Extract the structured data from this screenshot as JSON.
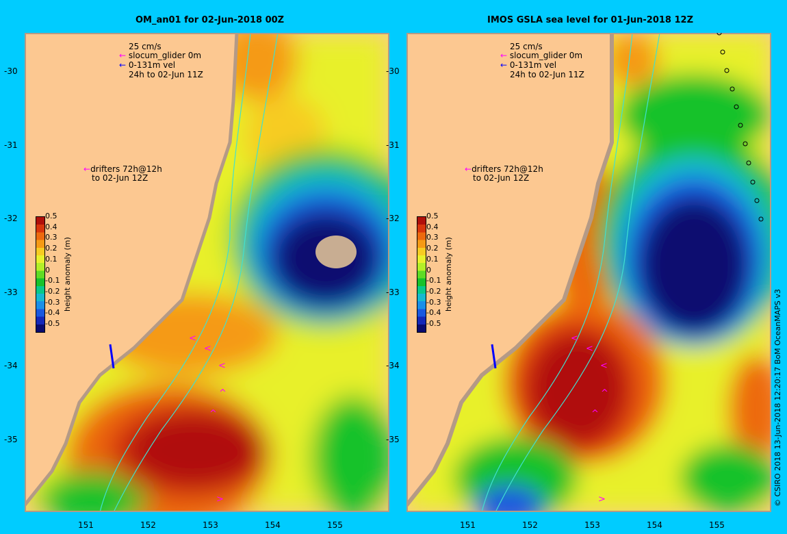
{
  "panels": [
    {
      "title": "OM_an01 for 02-Jun-2018 00Z",
      "legend": {
        "scale": "25 cm/s",
        "glider": "slocum_glider 0m",
        "vel": "0-131m vel",
        "window": "24h to 02-Jun 11Z",
        "drifters1": "drifters 72h@12h",
        "drifters2": "to 02-Jun 12Z"
      }
    },
    {
      "title": "IMOS GSLA sea level  for 01-Jun-2018 12Z",
      "legend": {
        "scale": "25 cm/s",
        "glider": "slocum_glider 0m",
        "vel": "0-131m vel",
        "window": "24h to 02-Jun 11Z",
        "drifters1": "drifters 72h@12h",
        "drifters2": "to 02-Jun 12Z"
      }
    }
  ],
  "colorbar": {
    "label": "height anomaly (m)",
    "ticks": [
      "0.5",
      "0.4",
      "0.3",
      "0.2",
      "0.1",
      "0",
      "-0.1",
      "-0.2",
      "-0.3",
      "-0.4",
      "-0.5"
    ],
    "colors": [
      "#b0100a",
      "#d8360c",
      "#ed6a0e",
      "#f59a14",
      "#f7cc22",
      "#e8f02c",
      "#b4ef28",
      "#5fdc25",
      "#18c22b",
      "#08c98a",
      "#16b9d0",
      "#1a8fe8",
      "#1a58e0",
      "#1528b8",
      "#0a0c70"
    ]
  },
  "lat_ticks": [
    "-30",
    "-31",
    "-32",
    "-33",
    "-34",
    "-35"
  ],
  "lon_ticks": [
    "151",
    "152",
    "153",
    "154",
    "155"
  ],
  "credit": "© CSIRO 2018   13-Jun-2018 12:20:17 BoM OceanMAPS v3",
  "colors": {
    "background": "#00ccff",
    "land": "#fcc891",
    "coast": "#b49a86",
    "contour": "#40e0d0",
    "drifter": "#ff00ff",
    "glider": "#0000ff"
  }
}
